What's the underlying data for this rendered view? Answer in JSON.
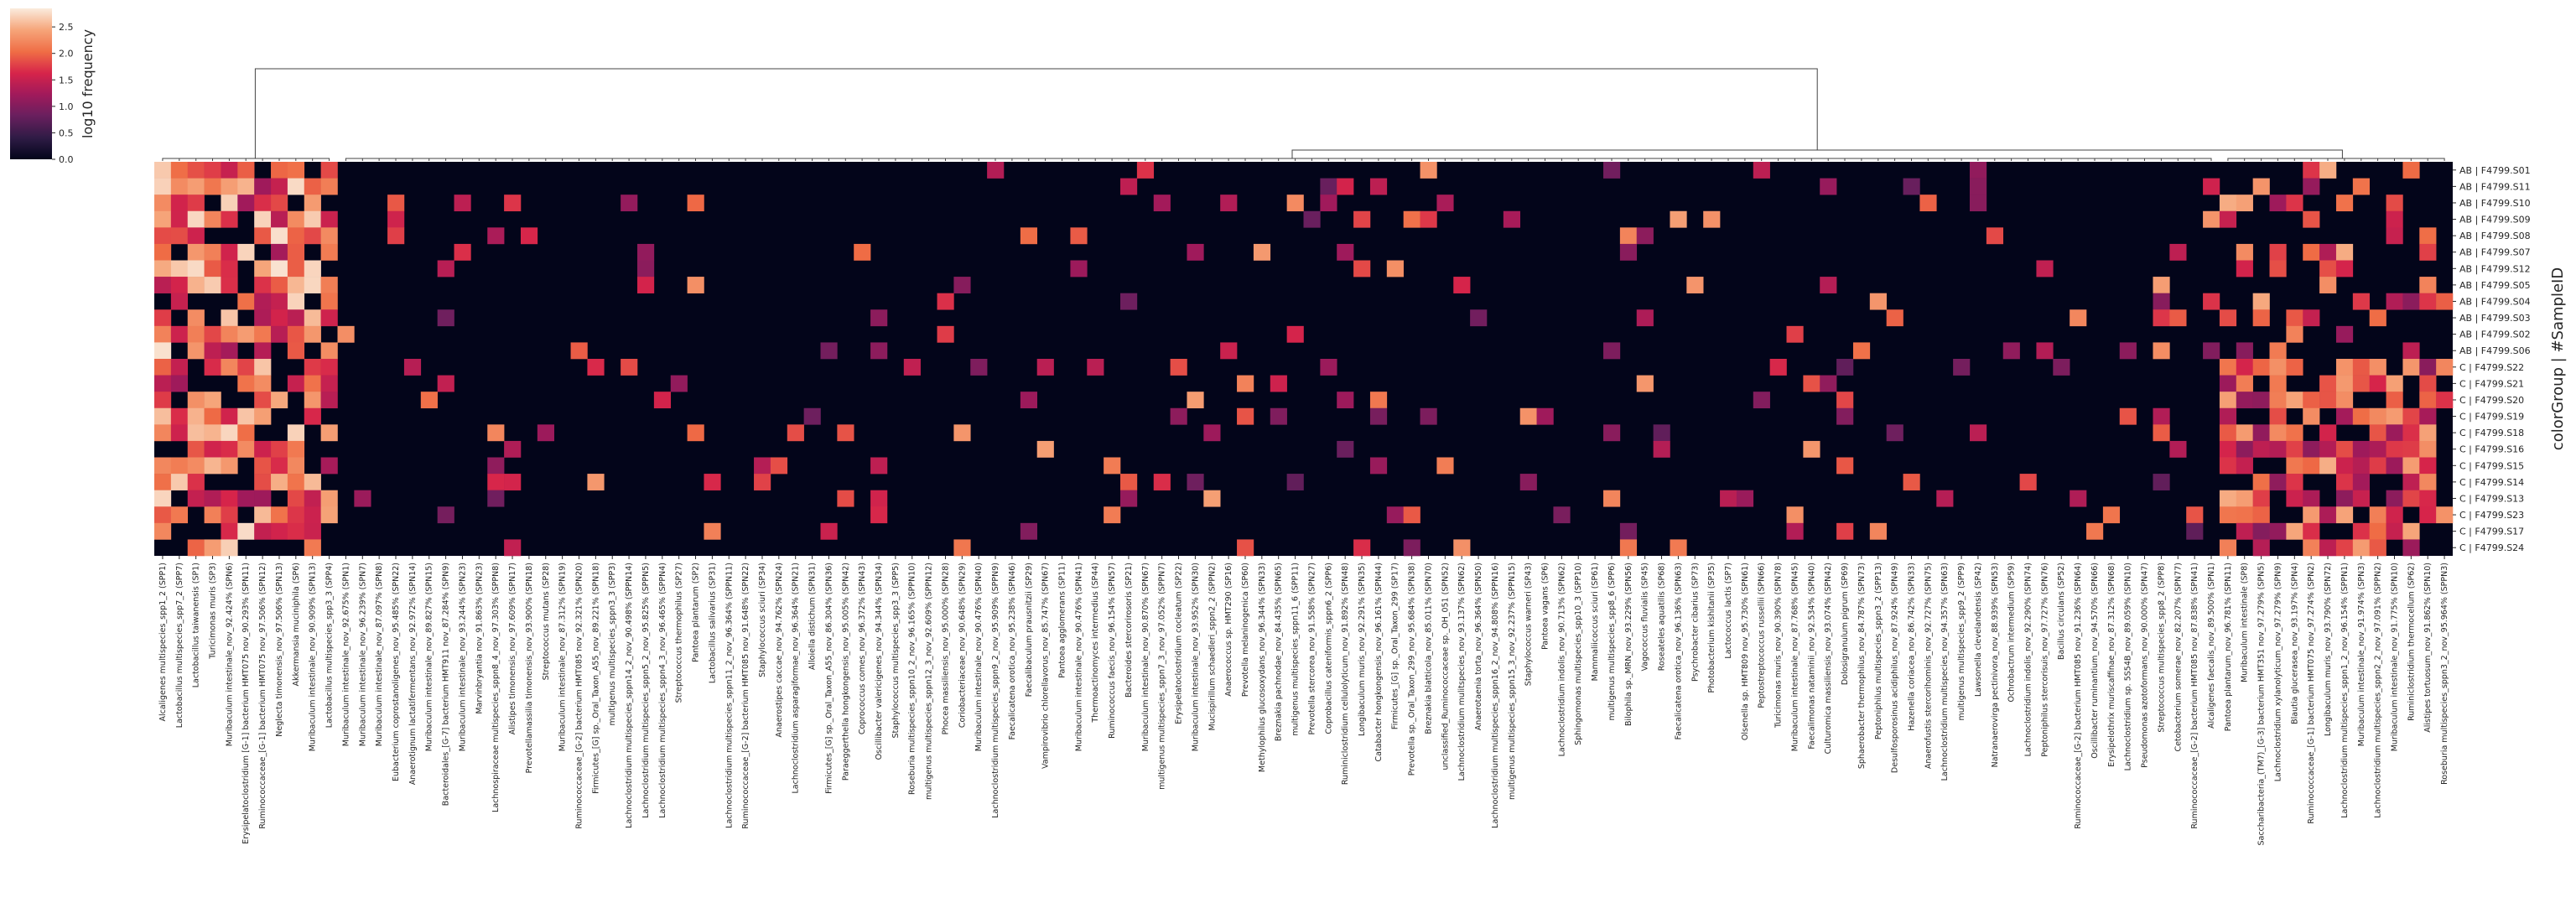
{
  "chart_data": {
    "type": "heatmap",
    "title": "",
    "ylabel": "colorGroup | #SampleID",
    "colorbar": {
      "label": "log10 frequency",
      "ticks": [
        "0.0",
        "0.5",
        "1.0",
        "1.5",
        "2.0",
        "2.5"
      ],
      "min": 0.0,
      "max": 2.85,
      "colormap": "rocket",
      "stops": [
        "#03051a",
        "#2e1b45",
        "#6a1f5e",
        "#a11a5b",
        "#d6244a",
        "#ef6c45",
        "#f6a67b",
        "#faebdd"
      ]
    },
    "rows": [
      "AB | F4799.S01",
      "AB | F4799.S11",
      "AB | F4799.S10",
      "AB | F4799.S09",
      "AB | F4799.S08",
      "AB | F4799.S07",
      "AB | F4799.S12",
      "AB | F4799.S05",
      "AB | F4799.S04",
      "AB | F4799.S03",
      "AB | F4799.S02",
      "AB | F4799.S06",
      "C | F4799.S22",
      "C | F4799.S21",
      "C | F4799.S20",
      "C | F4799.S19",
      "C | F4799.S18",
      "C | F4799.S16",
      "C | F4799.S15",
      "C | F4799.S14",
      "C | F4799.S13",
      "C | F4799.S23",
      "C | F4799.S17",
      "C | F4799.S24"
    ],
    "columns": [
      "Alcaligenes multispecies_spp1_2 (SPP1)",
      "Lactobacillus multispecies_spp7_2 (SPP7)",
      "Lactobacillus taiwanensis (SP1)",
      "Turicimonas muris (SP3)",
      "Muribaculum intestinale_nov_92.424% (SPN6)",
      "Erysipelatoclostridium [G-1] bacterium HMT075 nov_90.293% (SPN11)",
      "Ruminococcaceae_[G-1] bacterium HMT075 nov_97.506% (SPN12)",
      "Neglecta timonensis_nov_97.506% (SPN13)",
      "Akkermansia muciniphila (SP6)",
      "Muribaculum intestinale_nov_90.909% (SPN13)",
      "Lactobacillus multispecies_spp3_3 (SPP4)",
      "Muribaculum intestinale_nov_92.675% (SPN1)",
      "Muribaculum intestinale_nov_96.239% (SPN7)",
      "Muribaculum intestinale_nov_87.097% (SPN8)",
      "Eubacterium coprostanoligenes_nov_95.485% (SPN22)",
      "Anaerotignum lactatifermentans_nov_92.972% (SPN14)",
      "Muribaculum intestinale_nov_89.827% (SPN15)",
      "Bacteroidales_[G-7] bacterium HMT911 nov_87.284% (SPN9)",
      "Muribaculum intestinale_nov_93.244% (SPN23)",
      "Marvinbryantia nov_91.863% (SPN23)",
      "Lachnospiraceae multispecies_sppn8_4_nov_97.303% (SPPN8)",
      "Alistipes timonensis_nov_97.609% (SPN17)",
      "Prevotellamassilia timonensis_nov_93.900% (SPN18)",
      "Streptococcus mutans (SP28)",
      "Muribaculum intestinale_nov_87.312% (SPN19)",
      "Ruminococcaceae_[G-2] bacterium HMT085 nov_92.321% (SPN20)",
      "Firmicutes_[G] sp._Oral_Taxon_A55_nov_89.221% (SPN18)",
      "multigenus multispecies_sppn3_3 (SPP3)",
      "Lachnoclostridium multispecies_sppn14_2_nov_90.498% (SPPN14)",
      "Lachnoclostridium multispecies_sppn5_2_nov_95.825% (SPPN5)",
      "Lachnoclostridium multispecies_sppn4_3_nov_96.465% (SPPN4)",
      "Streptococcus thermophilus (SP27)",
      "Pantoea plantarum (SP2)",
      "Lactobacillus salivarius (SP31)",
      "Lachnoclostridium multispecies_sppn11_2_nov_96.364% (SPPN11)",
      "Ruminococcaceae_[G-2] bacterium HMT085 nov_91.648% (SPN22)",
      "Staphylococcus sciuri (SP34)",
      "Anaerostipes caccae_nov_94.762% (SPN24)",
      "Lachnoclostridium asparagiformae_nov_96.364% (SPN21)",
      "Alloiella distichum (SPN31)",
      "Firmicutes_[G] sp._Oral_Taxon_A55_nov_86.304% (SPN36)",
      "Paraeggerthella hongkongensis_nov_95.005% (SPN42)",
      "Coprococcus comes_nov_96.372% (SPN43)",
      "Oscillibacter valericigenes_nov_94.344% (SPN34)",
      "Staphylococcus multispecies_spp3_3 (SPP5)",
      "Roseburia multispecies_sppn10_2_nov_96.165% (SPPN10)",
      "multigenus multispecies_sppn12_3_nov_92.609% (SPPN12)",
      "Phocea massiliensis_nov_95.000% (SPN28)",
      "Coriobacteriaceae_nov_90.648% (SPN29)",
      "Muribaculum intestinale_nov_90.476% (SPN40)",
      "Lachnoclostridium multispecies_sppn9_2_nov_95.909% (SPPN9)",
      "Faecalicatena orotica_nov_95.238% (SPN46)",
      "Faecalibaculum prausnitzii (SP29)",
      "Vampirovibrio chlorellavorus_nov_85.747% (SPN67)",
      "Pantoea agglomerans (SP11)",
      "Muribaculum intestinale_nov_90.476% (SPN41)",
      "Thermoactinomyces intermedius (SP44)",
      "Ruminococcus faecis_nov_96.154% (SPN57)",
      "Bacteroides stercorirosoris (SP21)",
      "Muribaculum intestinale_nov_90.870% (SPN67)",
      "multigenus multispecies_sppn7_3_nov_97.052% (SPPN7)",
      "Erysipelatoclostridium cocleatum (SP22)",
      "Muribaculum intestinale_nov_93.952% (SPN30)",
      "Mucispirillum schaedleri_sppn2_2 (SPPN2)",
      "Anaerococcus sp. HMT290 (SP16)",
      "Prevotella melaninogenica (SP60)",
      "Methylophilus glucosoxydans_nov_96.344% (SPN33)",
      "Breznakia pachnodae_nov_84.435% (SPN65)",
      "multigenus multispecies_sppn11_6 (SPP11)",
      "Prevotella stercorea_nov_91.558% (SPN27)",
      "Coprobacillus cateniformis_sppn6_2 (SPP6)",
      "Ruminiclostridium cellulolyticum_nov_91.892% (SPN48)",
      "Longibaculum muris_nov_92.291% (SPN35)",
      "Catabacter hongkongensis_nov_96.161% (SPN44)",
      "Firmicutes_[G] sp._Oral_Taxon_299 (SP17)",
      "Prevotella sp._Oral_Taxon_299_nov_95.684% (SPN38)",
      "Breznakia blatticola_nov_85.011% (SPN70)",
      "unclassified_Ruminococcaceae sp._OH_051 (SPN52)",
      "Lachnoclostridium mulitspecies_nov_93.137% (SPN62)",
      "Anaerotaenia torta_nov_96.364% (SPN50)",
      "Lachnoclostridium multispecies_sppn16_2_nov_94.808% (SPPN16)",
      "multigenus multispecies_sppn15_3_nov_92.237% (SPPN15)",
      "Staphylococcus warneri (SP43)",
      "Pantoea vagans (SP6)",
      "Lachnoclostridium indolis_nov_90.713% (SPN62)",
      "Sphingomonas multispecies_spp10_3 (SPP10)",
      "Mammaliicoccus sciuri (SP61)",
      "multigenus multispecies_spp8_6 (SPP6)",
      "Bilophila sp._MRN_nov_93.229% (SPN56)",
      "Vagococcus fluvialis (SP45)",
      "Roseateles aquatilis (SP68)",
      "Faecalicatena orotica_nov_96.136% (SPN63)",
      "Psychrobacter cibarius (SP73)",
      "Photobacterium kishitanii (SP35)",
      "Lactococcus lactis (SP7)",
      "Olsenella sp. HMT809 nov_95.730% (SPN61)",
      "Peptostreptococcus russellii (SPN66)",
      "Turicimonas muris_nov_90.390% (SPN78)",
      "Muribaculum intestinale_nov_87.768% (SPN45)",
      "Faecalimonas nataminii_nov_92.534% (SPN40)",
      "Culturomica massiliensis_nov_93.074% (SPN42)",
      "Dolosigranulum pigrum (SP69)",
      "Sphaerobacter thermophilus_nov_84.787% (SPN73)",
      "Peptoniphilus multispecies_sppn3_2 (SPP13)",
      "Desulfosporosinus acidiphilus_nov_87.924% (SPN49)",
      "Hazenella coriacea_nov_86.742% (SPN33)",
      "Anaerofustis stercorihominis_nov_92.727% (SPN75)",
      "Lachnoclostridium multispecies_nov_94.357% (SPN63)",
      "multigenus multispecies_spp9_2 (SPP9)",
      "Lawsonella clevelandensis (SP42)",
      "Natranaerovirga pectinivora_nov_88.939% (SPN53)",
      "Ochrobactrum intermedium (SP59)",
      "Lachnoclostridium indolis_nov_92.290% (SPN74)",
      "Peptoniphilus stercorisuis_nov_97.727% (SPN76)",
      "Bacillus circulans (SP52)",
      "Ruminococcaceae_[G-2] bacterium HMT085 nov_91.236% (SPN64)",
      "Oscillibacter ruminantium_nov_94.570% (SPN66)",
      "Erysipelothrix muriscaffinae_nov_87.312% (SPN68)",
      "Lachnoclostridium sp. 5S54B_nov_89.059% (SPN10)",
      "Pseudomonas azotoformans_nov_90.000% (SPN47)",
      "Streptococcus multispecies_spp8_2 (SPP8)",
      "Cetobacterium somerae_nov_82.207% (SPN77)",
      "Ruminococcaceae_[G-2] bacterium HMT085 nov_87.838% (SPN41)",
      "Alcaligenes faecalis_nov_89.500% (SPN1)",
      "Pantoea plantarum_nov_96.781% (SPN11)",
      "Muribaculum intestinale (SP8)",
      "Saccharibacteria_(TM7)_[G-3] bacterium HMT351 nov_97.279% (SPN5)",
      "Lachnoclostridium xylanolyticum_nov_97.279% (SPN9)",
      "Blautia glucerasea_nov_93.197% (SPN4)",
      "Ruminococcaceae_[G-1] bacterium HMT075 nov_97.274% (SPN2)",
      "Longibaculum muris_nov_93.790% (SPN72)",
      "Lachnoclostridium multispecies_sppn1_2_nov_96.154% (SPPN1)",
      "Muribaculum intestinale_nov_91.974% (SPN3)",
      "Lachnoclostridium multispecies_sppn2_2_nov_97.091% (SPPN2)",
      "Muribaculum intestinale_nov_91.775% (SPN10)",
      "Ruminiclostridium thermocellum (SP62)",
      "Alistipes tortuosum_nov_91.862% (SPN10)",
      "Roseburia multispecies_sppn3_2_nov_95.964% (SPPN3)"
    ]
  }
}
